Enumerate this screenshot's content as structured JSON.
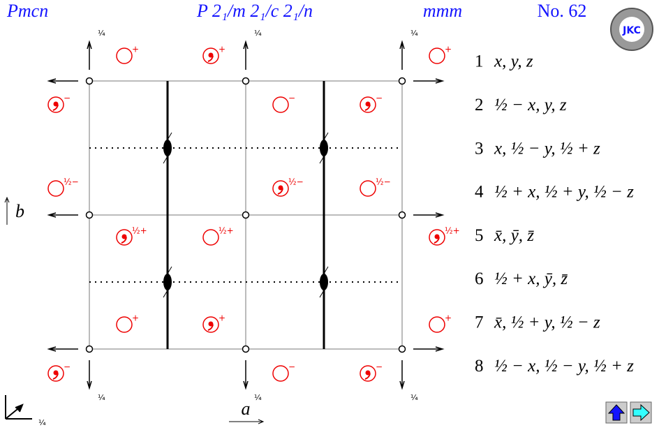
{
  "header": {
    "short_symbol": "Pmcn",
    "full_symbol": "P 2₁/m 2₁/c 2₁/n",
    "point_group": "mmm",
    "number": "No. 62",
    "logo": "JKC"
  },
  "axes": {
    "b": "b",
    "a": "a"
  },
  "quarter_labels": [
    "¼",
    "¼",
    "¼",
    "¼",
    "¼",
    "¼",
    "¼"
  ],
  "symbols": [
    {
      "label": "+",
      "comma": false
    },
    {
      "label": "+",
      "comma": true
    },
    {
      "label": "+",
      "comma": false
    },
    {
      "label": "−",
      "comma": true
    },
    {
      "label": "−",
      "comma": false
    },
    {
      "label": "−",
      "comma": true
    },
    {
      "label": "½−",
      "comma": false
    },
    {
      "label": "½−",
      "comma": true
    },
    {
      "label": "½−",
      "comma": false
    },
    {
      "label": "½+",
      "comma": true
    },
    {
      "label": "½+",
      "comma": false
    },
    {
      "label": "½+",
      "comma": true
    },
    {
      "label": "+",
      "comma": false
    },
    {
      "label": "+",
      "comma": true
    },
    {
      "label": "+",
      "comma": false
    },
    {
      "label": "−",
      "comma": true
    },
    {
      "label": "−",
      "comma": false
    },
    {
      "label": "−",
      "comma": true
    }
  ],
  "positions": [
    {
      "number": "1",
      "text": "x, y, z"
    },
    {
      "number": "2",
      "text": "½ − x, y, z"
    },
    {
      "number": "3",
      "text": "x, ½ − y, ½ + z"
    },
    {
      "number": "4",
      "text": "½ + x, ½ + y, ½ − z"
    },
    {
      "number": "5",
      "text": "x̄, ȳ, z̄"
    },
    {
      "number": "6",
      "text": "½ + x, ȳ, z̄"
    },
    {
      "number": "7",
      "text": "x̄, ½ + y, ½ − z"
    },
    {
      "number": "8",
      "text": "½ − x, ½ − y, ½ + z"
    }
  ]
}
